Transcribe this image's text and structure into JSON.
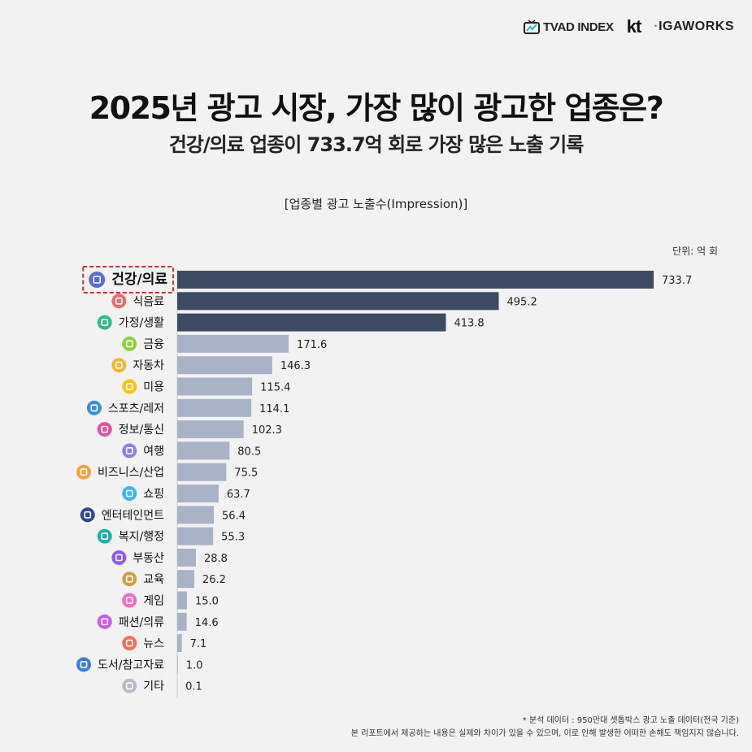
{
  "logos": {
    "tvad": "TVAD INDEX",
    "kt": "kt",
    "igaworks": "IGAWORKS"
  },
  "title": "2025년 광고 시장, 가장 많이 광고한 업종은?",
  "subtitle": "건강/의료 업종이 733.7억 회로 가장 많은 노출 기록",
  "unit": "단위: 억 회",
  "footnote": {
    "line1": "* 분석 데이터 : 950만대 셋톱박스 광고 노출 데이터(전국 기준)",
    "line2": "본 리포트에서 제공하는 내용은 실제와 차이가 있을 수 있으며, 이로 인해 발생한 어떠한 손해도 책임지지 않습니다."
  },
  "colors": {
    "dark_bar": "#3d4a62",
    "light_bar": "#a8b3c7",
    "highlight_border": "#c0392b"
  },
  "chart_data": {
    "type": "bar",
    "orientation": "horizontal",
    "title": "[업종별 광고 노출수(Impression)]",
    "categories": [
      "건강/의료",
      "식음료",
      "가정/생활",
      "금융",
      "자동차",
      "미용",
      "스포츠/레저",
      "정보/통신",
      "여행",
      "비즈니스/산업",
      "쇼핑",
      "엔터테인먼트",
      "복지/행정",
      "부동산",
      "교육",
      "게임",
      "패션/의류",
      "뉴스",
      "도서/참고자료",
      "기타"
    ],
    "values": [
      733.7,
      495.2,
      413.8,
      171.6,
      146.3,
      115.4,
      114.1,
      102.3,
      80.5,
      75.5,
      63.7,
      56.4,
      55.3,
      28.8,
      26.2,
      15.0,
      14.6,
      7.1,
      1.0,
      0.1
    ],
    "value_labels": [
      "733.7",
      "495.2",
      "413.8",
      "171.6",
      "146.3",
      "115.4",
      "114.1",
      "102.3",
      "80.5",
      "75.5",
      "63.7",
      "56.4",
      "55.3",
      "28.8",
      "26.2",
      "15.0",
      "14.6",
      "7.1",
      "1.0",
      "0.1"
    ],
    "icons": [
      "medical-cross-icon",
      "fork-knife-icon",
      "fridge-icon",
      "piggy-bank-icon",
      "car-icon",
      "lipstick-icon",
      "dumbbell-icon",
      "phone-icon",
      "airplane-icon",
      "briefcase-icon",
      "shopping-cart-icon",
      "clapperboard-icon",
      "heart-hands-icon",
      "house-icon",
      "graduation-cap-icon",
      "gamepad-icon",
      "high-heel-icon",
      "microphone-icon",
      "book-icon",
      "image-icon"
    ],
    "icon_colors": [
      "#5a6fd1",
      "#ef6b6b",
      "#2fbf8f",
      "#8fd13b",
      "#f5b82e",
      "#f5c518",
      "#3a8fe0",
      "#e64fa0",
      "#8b7fe8",
      "#f5a23a",
      "#3bb8e8",
      "#2f4a8a",
      "#1fb2a6",
      "#8a5cf0",
      "#c8a046",
      "#f06ec0",
      "#c85cf0",
      "#f06e5c",
      "#3a7fe0",
      "#b8bcc8"
    ],
    "dark_count": 3,
    "highlight_index": 0,
    "xlim": [
      0,
      733.7
    ],
    "grid": false,
    "legend": "none"
  }
}
